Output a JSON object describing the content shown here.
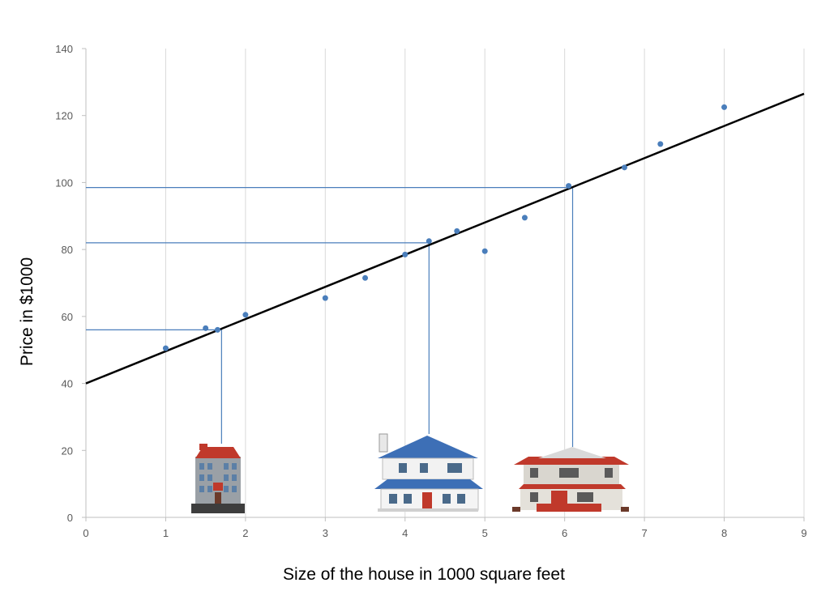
{
  "chart_data": {
    "type": "scatter",
    "title": "",
    "xlabel": "Size of the house in 1000 square feet",
    "ylabel": "Price in $1000",
    "xlim": [
      0,
      9
    ],
    "ylim": [
      0,
      140
    ],
    "xticks": [
      0,
      1,
      2,
      3,
      4,
      5,
      6,
      7,
      8,
      9
    ],
    "yticks": [
      0,
      20,
      40,
      60,
      80,
      100,
      120,
      140
    ],
    "grid": "vertical",
    "series": [
      {
        "points": [
          {
            "x": 1.0,
            "y": 50.5
          },
          {
            "x": 1.5,
            "y": 56.5
          },
          {
            "x": 1.65,
            "y": 56.0
          },
          {
            "x": 2.0,
            "y": 60.5
          },
          {
            "x": 3.0,
            "y": 65.5
          },
          {
            "x": 3.5,
            "y": 71.5
          },
          {
            "x": 4.0,
            "y": 78.5
          },
          {
            "x": 4.3,
            "y": 82.5
          },
          {
            "x": 4.65,
            "y": 85.5
          },
          {
            "x": 5.0,
            "y": 79.5
          },
          {
            "x": 5.5,
            "y": 89.5
          },
          {
            "x": 6.05,
            "y": 99.0
          },
          {
            "x": 6.75,
            "y": 104.5
          },
          {
            "x": 7.2,
            "y": 111.5
          },
          {
            "x": 8.0,
            "y": 122.5
          }
        ]
      }
    ],
    "trendline": {
      "x": [
        0,
        9
      ],
      "y": [
        40,
        126.5
      ]
    },
    "projections": [
      {
        "x": 1.7,
        "y": 56
      },
      {
        "x": 4.3,
        "y": 82
      },
      {
        "x": 6.1,
        "y": 98.5
      }
    ],
    "house_icons": [
      "apartment-building-icon",
      "blue-roof-house-icon",
      "red-roof-house-icon"
    ],
    "colors": {
      "points": "#4a7ebb",
      "trendline": "#000000",
      "projection_lines": "#4a7ebb",
      "grid": "#d9d9d9",
      "axis": "#bfbfbf"
    }
  }
}
